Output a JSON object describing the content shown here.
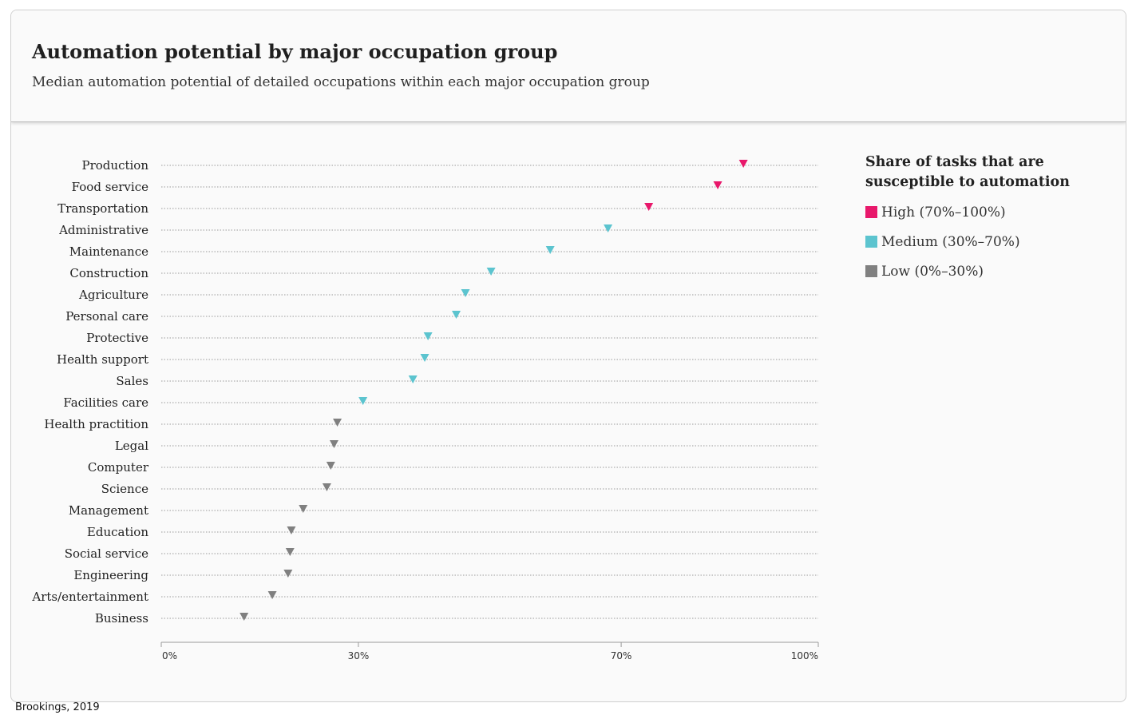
{
  "header": {
    "title": "Automation potential by major occupation group",
    "subtitle": "Median automation potential of detailed occupations within each major occupation group"
  },
  "legend": {
    "title": "Share of tasks that are susceptible to automation",
    "items": [
      {
        "label": "High (70%–100%)",
        "color": "#e8186b"
      },
      {
        "label": "Medium (30%–70%)",
        "color": "#5cc4cf"
      },
      {
        "label": "Low (0%–30%)",
        "color": "#808080"
      }
    ]
  },
  "source": "Brookings, 2019",
  "chart_data": {
    "type": "scatter",
    "marker": "triangle-down",
    "xlim": [
      0,
      100
    ],
    "x_ticks": [
      0,
      30,
      70,
      100
    ],
    "x_tick_labels": [
      "0%",
      "30%",
      "70%",
      "100%"
    ],
    "grid": "dotted horizontal",
    "legend_placement": "right",
    "categories": [
      "Production",
      "Food service",
      "Transportation",
      "Administrative",
      "Maintenance",
      "Construction",
      "Agriculture",
      "Personal care",
      "Protective",
      "Health support",
      "Sales",
      "Facilities care",
      "Health practition",
      "Legal",
      "Computer",
      "Science",
      "Management",
      "Education",
      "Social service",
      "Engineering",
      "Arts/entertainment",
      "Business"
    ],
    "values": [
      88.6,
      84.7,
      74.2,
      68.0,
      59.2,
      50.2,
      46.3,
      44.9,
      40.6,
      40.1,
      38.3,
      30.7,
      26.8,
      26.3,
      25.8,
      25.2,
      21.6,
      19.8,
      19.6,
      19.3,
      16.9,
      12.6
    ],
    "levels": [
      "High",
      "High",
      "High",
      "Medium",
      "Medium",
      "Medium",
      "Medium",
      "Medium",
      "Medium",
      "Medium",
      "Medium",
      "Medium",
      "Low",
      "Low",
      "Low",
      "Low",
      "Low",
      "Low",
      "Low",
      "Low",
      "Low",
      "Low"
    ],
    "level_colors": {
      "High": "#e8186b",
      "Medium": "#5cc4cf",
      "Low": "#808080"
    }
  }
}
